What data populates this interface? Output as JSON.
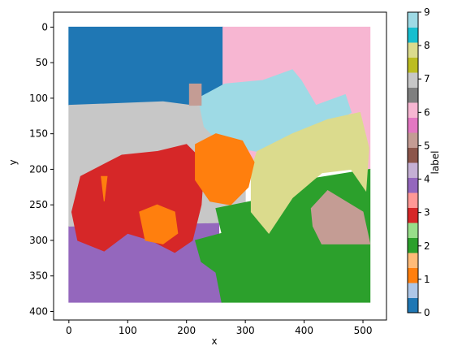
{
  "chart_data": {
    "type": "region-map",
    "xlabel": "x",
    "ylabel": "y",
    "colorbar_label": "label",
    "xlim": [
      -26,
      540
    ],
    "xticks": [
      0,
      100,
      200,
      300,
      400,
      500
    ],
    "ylim": [
      412,
      -21
    ],
    "yticks": [
      0,
      50,
      100,
      150,
      200,
      250,
      300,
      350,
      400
    ],
    "clim": [
      0,
      9
    ],
    "cticks": [
      0,
      1,
      2,
      3,
      4,
      5,
      6,
      7,
      8,
      9
    ],
    "colormap": [
      "#1f77b4",
      "#aec7e8",
      "#ff7f0e",
      "#ffbb78",
      "#2ca02c",
      "#98df8a",
      "#d62728",
      "#ff9896",
      "#9467bd",
      "#c5b0d5",
      "#8c564b",
      "#c49c94",
      "#e377c2",
      "#f7b6d2",
      "#7f7f7f",
      "#c7c7c7",
      "#bcbd22",
      "#dbdb8d",
      "#17becf",
      "#9edae5"
    ],
    "regions": [
      {
        "label": 4,
        "points": [
          [
            0,
            280
          ],
          [
            255,
            275
          ],
          [
            255,
            300
          ],
          [
            225,
            330
          ],
          [
            250,
            345
          ],
          [
            260,
            387
          ],
          [
            0,
            387
          ]
        ]
      },
      {
        "label": 0,
        "points": [
          [
            0,
            0
          ],
          [
            262,
            0
          ],
          [
            262,
            110
          ],
          [
            150,
            110
          ],
          [
            0,
            110
          ]
        ]
      },
      {
        "label": 6,
        "points": [
          [
            262,
            0
          ],
          [
            512,
            0
          ],
          [
            512,
            200
          ],
          [
            300,
            200
          ],
          [
            262,
            110
          ]
        ]
      },
      {
        "label": 7,
        "points": [
          [
            0,
            110
          ],
          [
            160,
            105
          ],
          [
            300,
            120
          ],
          [
            300,
            250
          ],
          [
            255,
            275
          ],
          [
            0,
            280
          ]
        ]
      },
      {
        "label": 2,
        "points": [
          [
            250,
            255
          ],
          [
            340,
            240
          ],
          [
            400,
            215
          ],
          [
            512,
            200
          ],
          [
            512,
            387
          ],
          [
            260,
            387
          ],
          [
            250,
            345
          ],
          [
            225,
            330
          ],
          [
            215,
            300
          ],
          [
            260,
            290
          ]
        ]
      },
      {
        "label": 9,
        "points": [
          [
            220,
            100
          ],
          [
            265,
            80
          ],
          [
            330,
            75
          ],
          [
            380,
            60
          ],
          [
            395,
            75
          ],
          [
            420,
            110
          ],
          [
            470,
            95
          ],
          [
            480,
            120
          ],
          [
            440,
            140
          ],
          [
            380,
            170
          ],
          [
            320,
            175
          ],
          [
            260,
            165
          ],
          [
            230,
            140
          ]
        ]
      },
      {
        "label": 8,
        "points": [
          [
            320,
            175
          ],
          [
            380,
            150
          ],
          [
            440,
            130
          ],
          [
            495,
            120
          ],
          [
            510,
            170
          ],
          [
            505,
            230
          ],
          [
            480,
            200
          ],
          [
            430,
            205
          ],
          [
            380,
            240
          ],
          [
            340,
            290
          ],
          [
            310,
            260
          ],
          [
            310,
            200
          ]
        ]
      },
      {
        "label": 5,
        "points": [
          [
            412,
            255
          ],
          [
            440,
            230
          ],
          [
            470,
            245
          ],
          [
            500,
            260
          ],
          [
            512,
            305
          ],
          [
            430,
            305
          ],
          [
            415,
            280
          ]
        ]
      },
      {
        "label": 5,
        "points": [
          [
            205,
            80
          ],
          [
            225,
            80
          ],
          [
            225,
            110
          ],
          [
            205,
            110
          ]
        ]
      },
      {
        "label": 3,
        "points": [
          [
            20,
            210
          ],
          [
            90,
            180
          ],
          [
            150,
            175
          ],
          [
            200,
            165
          ],
          [
            230,
            190
          ],
          [
            225,
            250
          ],
          [
            210,
            300
          ],
          [
            180,
            317
          ],
          [
            140,
            300
          ],
          [
            100,
            290
          ],
          [
            60,
            315
          ],
          [
            15,
            300
          ],
          [
            5,
            260
          ]
        ]
      },
      {
        "label": 1,
        "points": [
          [
            215,
            165
          ],
          [
            250,
            150
          ],
          [
            295,
            160
          ],
          [
            315,
            190
          ],
          [
            305,
            225
          ],
          [
            275,
            250
          ],
          [
            240,
            245
          ],
          [
            215,
            215
          ]
        ]
      },
      {
        "label": 1,
        "points": [
          [
            120,
            260
          ],
          [
            150,
            250
          ],
          [
            180,
            260
          ],
          [
            185,
            290
          ],
          [
            160,
            305
          ],
          [
            130,
            300
          ]
        ]
      },
      {
        "label": 1,
        "points": [
          [
            55,
            210
          ],
          [
            65,
            210
          ],
          [
            60,
            245
          ]
        ]
      }
    ]
  }
}
